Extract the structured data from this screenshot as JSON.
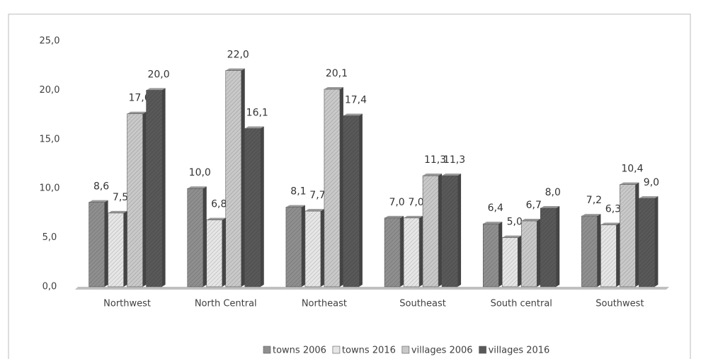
{
  "chart_data": {
    "type": "bar",
    "categories": [
      "Northwest",
      "North Central",
      "Northeast",
      "Southeast",
      "South central",
      "Southwest"
    ],
    "series": [
      {
        "name": "towns 2006",
        "color": "#8f8f8f",
        "values": [
          8.6,
          10.0,
          8.1,
          7.0,
          6.4,
          7.2
        ],
        "value_labels": [
          "8,6",
          "10,0",
          "8,1",
          "7,0",
          "6,4",
          "7,2"
        ]
      },
      {
        "name": "towns 2016",
        "color": "#e6e6e6",
        "values": [
          7.5,
          6.8,
          7.7,
          7.0,
          5.0,
          6.3
        ],
        "value_labels": [
          "7,5",
          "6,8",
          "7,7",
          "7,0",
          "5,0",
          "6,3"
        ]
      },
      {
        "name": "villages 2006",
        "color": "#c9c9c9",
        "values": [
          17.6,
          22.0,
          20.1,
          11.3,
          6.7,
          10.4
        ],
        "value_labels": [
          "17,6",
          "22,0",
          "20,1",
          "11,3",
          "6,7",
          "10,4"
        ]
      },
      {
        "name": "villages 2016",
        "color": "#595959",
        "values": [
          20.0,
          16.1,
          17.4,
          11.3,
          8.0,
          9.0
        ],
        "value_labels": [
          "20,0",
          "16,1",
          "17,4",
          "11,3",
          "8,0",
          "9,0"
        ]
      }
    ],
    "ylim": [
      0,
      25
    ],
    "yticks": [
      {
        "value": 0,
        "label": "0,0"
      },
      {
        "value": 5,
        "label": "5,0"
      },
      {
        "value": 10,
        "label": "10,0"
      },
      {
        "value": 15,
        "label": "15,0"
      },
      {
        "value": 20,
        "label": "20,0"
      },
      {
        "value": 25,
        "label": "25,0"
      }
    ],
    "legend": "bottom"
  }
}
